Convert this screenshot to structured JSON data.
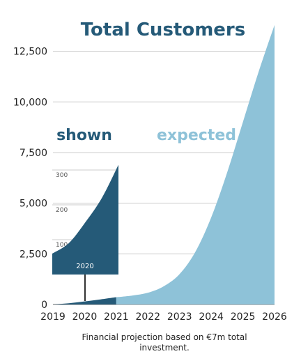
{
  "chart_data": {
    "type": "area",
    "title": "Total Customers",
    "x_ticks": [
      "2019",
      "2020",
      "2021",
      "2022",
      "2023",
      "2024",
      "2025",
      "2026"
    ],
    "y_ticks": [
      "0",
      "2,500",
      "5,000",
      "7,500",
      "10,000",
      "12,500"
    ],
    "ylim": [
      0,
      14000
    ],
    "grid": true,
    "series": [
      {
        "name": "shown",
        "color": "#255a78",
        "x": [
          2019.0,
          2019.5,
          2020.0,
          2020.5,
          2021.0
        ],
        "values": [
          0,
          60,
          150,
          250,
          360
        ]
      },
      {
        "name": "expected",
        "color": "#8ec2d8",
        "x": [
          2021.0,
          2021.5,
          2022.0,
          2022.5,
          2023.0,
          2023.5,
          2024.0,
          2024.5,
          2025.0,
          2025.5,
          2026.0
        ],
        "values": [
          360,
          440,
          580,
          900,
          1500,
          2600,
          4300,
          6500,
          9000,
          11500,
          13800
        ]
      }
    ],
    "inset": {
      "x_label": "2020",
      "y_ticks": [
        "100",
        "200",
        "300"
      ],
      "ylim": [
        0,
        340
      ],
      "x": [
        0,
        0.25,
        0.5,
        0.75,
        1.0
      ],
      "values": [
        60,
        90,
        150,
        220,
        315
      ]
    },
    "caption": "Financial projection based on €7m total investment.",
    "caption_lines": [
      "Financial projection based on €7m total",
      "investment."
    ]
  }
}
